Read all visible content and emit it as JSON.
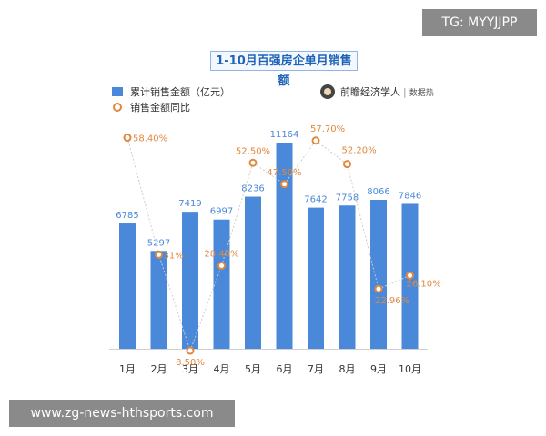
{
  "overlay": {
    "top_right_tag": "TG: MYYJJPP",
    "bottom_left_url": "www.zg-news-hthsports.com"
  },
  "source": {
    "name": "前瞻经济学人",
    "sub": "数据热"
  },
  "chart_data": {
    "type": "bar",
    "title": "1-10月百强房企单月销售额",
    "categories": [
      "1月",
      "2月",
      "3月",
      "4月",
      "5月",
      "6月",
      "7月",
      "8月",
      "9月",
      "10月"
    ],
    "series": [
      {
        "name": "累计销售金额（亿元）",
        "type": "bar",
        "values": [
          6785,
          5297,
          7419,
          6997,
          8236,
          11164,
          7642,
          7758,
          8066,
          7846
        ],
        "value_labels": [
          "6785",
          "5297",
          "7419",
          "6997",
          "8236",
          "11164",
          "7642",
          "7758",
          "8066",
          "7846"
        ]
      },
      {
        "name": "销售金额同比",
        "type": "line",
        "values": [
          58.4,
          31,
          8.5,
          28.4,
          52.5,
          47.5,
          57.7,
          52.2,
          22.96,
          26.1
        ],
        "value_labels": [
          "58.40%",
          "31%",
          "8.50%",
          "28.40%",
          "52.50%",
          "47.50%",
          "57.70%",
          "52.20%",
          "22.96%",
          "26.10%"
        ]
      }
    ],
    "colors": {
      "bar": "#4a88d9",
      "line": "#e0893e",
      "bar_label": "#4a88d9",
      "line_label": "#e0893e"
    }
  }
}
